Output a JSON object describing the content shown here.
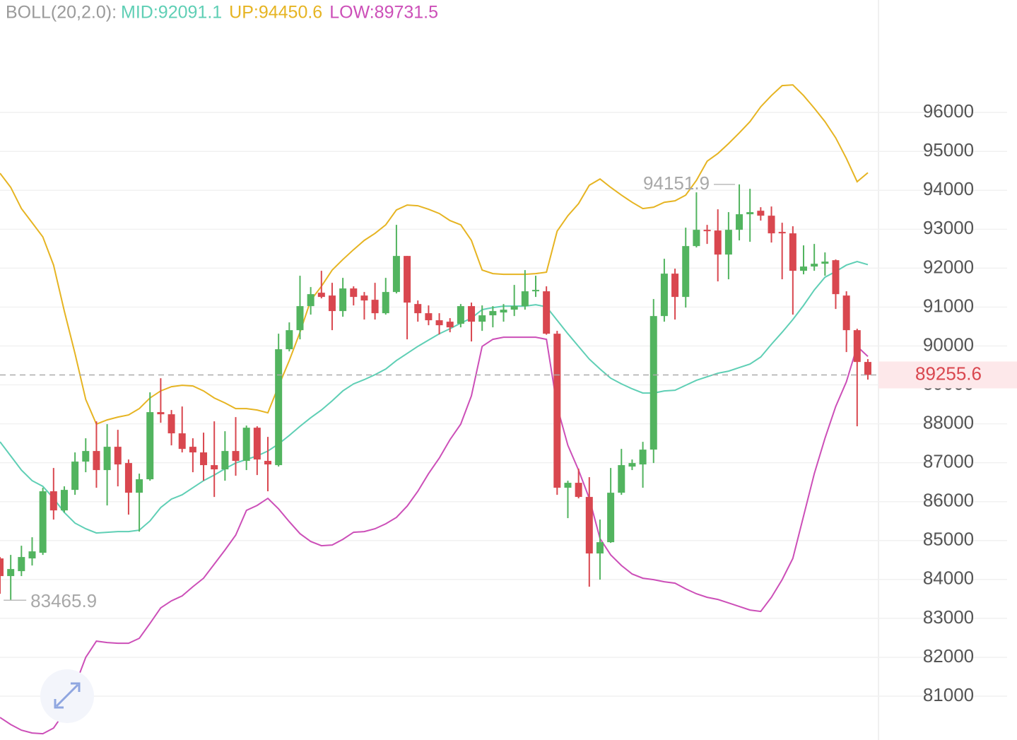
{
  "chart_data": {
    "type": "candlestick",
    "indicator": "BOLL(20,2.0):",
    "up_color": "#52b45f",
    "down_color": "#d9474f",
    "open": [
      84541,
      84087,
      84214,
      84541,
      84686,
      86266,
      85775,
      86302,
      87029,
      87301,
      86811,
      87410,
      86992,
      86229,
      86575,
      88300,
      88245,
      87755,
      87410,
      87265,
      86938,
      86829,
      87301,
      87047,
      87900,
      87047,
      86938,
      89916,
      90406,
      91024,
      91369,
      91296,
      90897,
      91478,
      91296,
      91187,
      90842,
      91387,
      92313,
      91078,
      90842,
      90661,
      90624,
      90570,
      91024,
      90624,
      90788,
      90860,
      90933,
      91024,
      91405,
      91405,
      90315,
      86357,
      86484,
      86121,
      84668,
      84958,
      86229,
      86901,
      86956,
      87337,
      90769,
      91859,
      91260,
      92567,
      92985,
      92967,
      92349,
      92985,
      93385,
      93475,
      93348,
      92931,
      92894,
      91932,
      92041,
      92113,
      92204,
      91296,
      90406,
      89589
    ],
    "high": [
      84577,
      84631,
      84867,
      85085,
      86357,
      86865,
      86393,
      87265,
      87628,
      88064,
      87991,
      87846,
      87083,
      86720,
      88808,
      89171,
      88354,
      88445,
      87628,
      87773,
      88064,
      87809,
      88173,
      87955,
      87937,
      87664,
      90315,
      90606,
      91805,
      91514,
      91932,
      91623,
      91750,
      91532,
      91387,
      91623,
      91750,
      93112,
      92313,
      91169,
      91042,
      90842,
      90715,
      91078,
      91115,
      91042,
      91024,
      91078,
      91569,
      91950,
      91805,
      91532,
      90388,
      86538,
      86847,
      86629,
      85539,
      86865,
      87355,
      87083,
      87537,
      91205,
      92240,
      91986,
      93039,
      93947,
      93112,
      93512,
      93439,
      94151.9,
      94038,
      93566,
      93584,
      93167,
      93076,
      92585,
      92622,
      92404,
      92222,
      91405,
      90443,
      89662
    ],
    "low": [
      83633,
      83465.9,
      84087,
      84359,
      84631,
      85539,
      85721,
      86175,
      86756,
      86357,
      85903,
      86393,
      85667,
      85231,
      86538,
      88027,
      87446,
      87265,
      86756,
      86538,
      86121,
      86538,
      86665,
      86811,
      86683,
      86266,
      86901,
      89861,
      90170,
      90806,
      91223,
      90406,
      90751,
      91042,
      90679,
      90679,
      90806,
      91351,
      90170,
      90624,
      90533,
      90297,
      90352,
      90479,
      90116,
      90388,
      90479,
      90624,
      90769,
      90933,
      91260,
      90290,
      86175,
      85576,
      86084,
      83814,
      83996,
      84940,
      86175,
      86811,
      86357,
      86992,
      90624,
      90679,
      90987,
      92531,
      92622,
      91659,
      91714,
      92713,
      92676,
      93221,
      92658,
      91714,
      90806,
      91841,
      91932,
      91805,
      90951,
      89843,
      87937,
      89135
    ],
    "close": [
      84087,
      84268,
      84577,
      84722,
      86266,
      85775,
      86302,
      87029,
      87301,
      86811,
      87410,
      86956,
      86229,
      86575,
      88300,
      88245,
      87755,
      87355,
      87265,
      86938,
      86829,
      87301,
      87047,
      87900,
      87083,
      86956,
      89916,
      90406,
      91024,
      91332,
      91260,
      90897,
      91478,
      91260,
      91169,
      90842,
      91387,
      92313,
      91115,
      90842,
      90661,
      90533,
      90479,
      91024,
      90624,
      90788,
      90897,
      90933,
      91024,
      91405,
      91441,
      90315,
      86357,
      86484,
      86121,
      84668,
      84958,
      86229,
      86938,
      86992,
      87337,
      90769,
      91859,
      91260,
      92567,
      92985,
      92967,
      92349,
      92985,
      93385,
      93439,
      93348,
      92894,
      92894,
      91932,
      92041,
      92113,
      92168,
      91332,
      90406,
      89589,
      89255.6
    ],
    "series": [
      {
        "name": "MID:92091.1",
        "color": "#5fcfb5",
        "values": [
          87537,
          87174,
          86811,
          86538,
          86393,
          86084,
          85721,
          85449,
          85304,
          85195,
          85213,
          85231,
          85231,
          85267,
          85503,
          85848,
          86066,
          86175,
          86357,
          86538,
          86683,
          86847,
          86992,
          87083,
          87174,
          87301,
          87482,
          87700,
          87937,
          88155,
          88354,
          88591,
          88845,
          89026,
          89135,
          89262,
          89408,
          89625,
          89807,
          89989,
          90152,
          90315,
          90443,
          90588,
          90715,
          90933,
          90987,
          91024,
          91024,
          91024,
          91060,
          91006,
          90661,
          90315,
          89989,
          89662,
          89408,
          89171,
          89026,
          88899,
          88790,
          88790,
          88845,
          88863,
          88990,
          89117,
          89208,
          89299,
          89353,
          89444,
          89535,
          89716,
          90043,
          90352,
          90679,
          91042,
          91441,
          91768,
          91914,
          92077,
          92168,
          92091.1
        ]
      },
      {
        "name": "UP:94450.6",
        "color": "#e6b422",
        "values": [
          94438,
          94075,
          93530,
          93167,
          92803,
          92077,
          90897,
          89807,
          88627,
          87991,
          88100,
          88173,
          88227,
          88390,
          88663,
          88845,
          88954,
          88990,
          88972,
          88845,
          88663,
          88536,
          88390,
          88390,
          88354,
          88282,
          88972,
          89625,
          90352,
          91169,
          91532,
          91950,
          92222,
          92476,
          92713,
          92894,
          93112,
          93494,
          93621,
          93603,
          93512,
          93403,
          93221,
          93112,
          92713,
          91950,
          91859,
          91841,
          91841,
          91841,
          91859,
          91896,
          92949,
          93348,
          93657,
          94129,
          94292,
          94075,
          93875,
          93693,
          93530,
          93566,
          93693,
          93730,
          93875,
          94256,
          94747,
          94946,
          95201,
          95473,
          95764,
          96145,
          96435,
          96690,
          96708,
          96435,
          96109,
          95764,
          95346,
          94819,
          94220,
          94450.6
        ]
      },
      {
        "name": "LOW:89731.5",
        "color": "#cc4fb8",
        "values": [
          80455,
          80273,
          80128,
          80055,
          80037,
          80182,
          80582,
          81272,
          81998,
          82416,
          82380,
          82361,
          82361,
          82489,
          82870,
          83270,
          83451,
          83578,
          83814,
          84033,
          84396,
          84759,
          85140,
          85775,
          85903,
          86084,
          85812,
          85485,
          85177,
          84977,
          84867,
          84885,
          85031,
          85213,
          85231,
          85304,
          85430,
          85594,
          85884,
          86266,
          86720,
          87119,
          87591,
          87991,
          88717,
          89989,
          90171,
          90225,
          90225,
          90225,
          90225,
          90171,
          88445,
          87446,
          86811,
          86084,
          85049,
          84631,
          84359,
          84141,
          84033,
          83996,
          83942,
          83905,
          83760,
          83633,
          83542,
          83488,
          83396,
          83306,
          83215,
          83179,
          83542,
          83996,
          84541,
          85630,
          86720,
          87628,
          88445,
          89081,
          89989,
          89731.5
        ]
      }
    ],
    "ylim": [
      79875,
      98890
    ],
    "yticks": [
      81000,
      82000,
      83000,
      84000,
      85000,
      86000,
      87000,
      88000,
      89000,
      90000,
      91000,
      92000,
      93000,
      94000,
      95000,
      96000
    ],
    "grid": true
  }
}
